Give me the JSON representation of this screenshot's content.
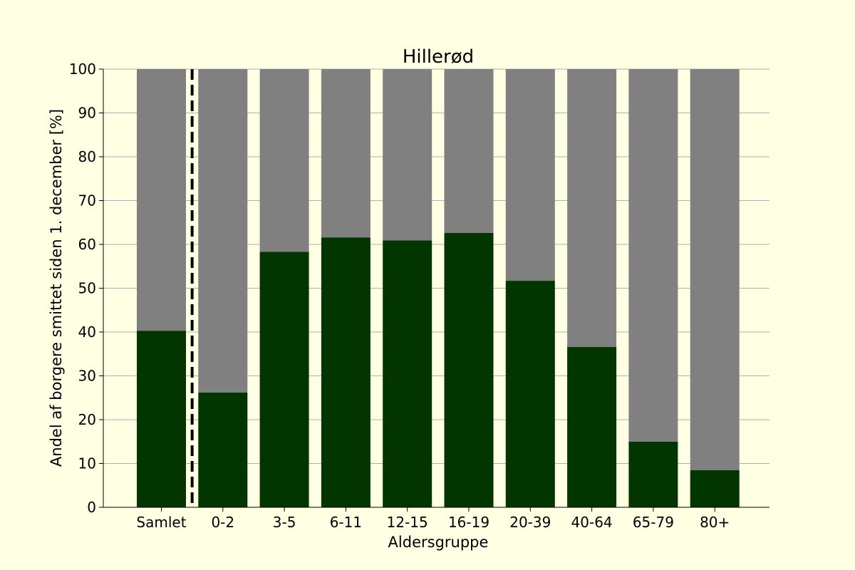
{
  "chart_data": {
    "type": "bar",
    "stacked": true,
    "title": "Hillerød",
    "xlabel": "Aldersgruppe",
    "ylabel": "Andel af borgere smittet siden 1. december [%]",
    "ylim": [
      0,
      100
    ],
    "yticks": [
      "0",
      "10",
      "20",
      "30",
      "40",
      "50",
      "60",
      "70",
      "80",
      "90",
      "100"
    ],
    "categories": [
      "Samlet",
      "0-2",
      "3-5",
      "6-11",
      "12-15",
      "16-19",
      "20-39",
      "40-64",
      "65-79",
      "80+"
    ],
    "series": [
      {
        "values": [
          40.3,
          26.2,
          58.3,
          61.6,
          60.9,
          62.6,
          51.7,
          36.6,
          15.0,
          8.5
        ],
        "color": "#033500"
      },
      {
        "values": [
          59.7,
          73.8,
          41.7,
          38.4,
          39.1,
          37.4,
          48.3,
          63.4,
          85.0,
          91.5
        ],
        "color": "#808080"
      }
    ],
    "grid": "horizontal",
    "separator": {
      "style": "dashed",
      "after_category": "Samlet",
      "color": "#000000"
    },
    "background": "#ffffe4"
  }
}
